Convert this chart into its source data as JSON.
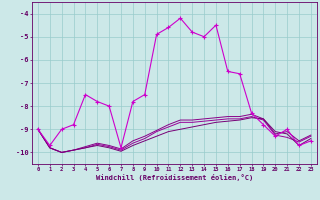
{
  "x": [
    0,
    1,
    2,
    3,
    4,
    5,
    6,
    7,
    8,
    9,
    10,
    11,
    12,
    13,
    14,
    15,
    16,
    17,
    18,
    19,
    20,
    21,
    22,
    23
  ],
  "line1": [
    -9.0,
    -9.7,
    -9.0,
    -8.8,
    -7.5,
    -7.8,
    -8.0,
    -9.8,
    -7.8,
    -7.5,
    -4.9,
    -4.6,
    -4.2,
    -4.8,
    -5.0,
    -4.5,
    -6.5,
    -6.6,
    -8.3,
    -8.8,
    -9.3,
    -9.0,
    -9.7,
    -9.5
  ],
  "line2": [
    -9.0,
    -9.8,
    -10.0,
    -9.9,
    -9.8,
    -9.7,
    -9.8,
    -9.95,
    -9.7,
    -9.5,
    -9.3,
    -9.1,
    -9.0,
    -8.9,
    -8.8,
    -8.7,
    -8.65,
    -8.6,
    -8.5,
    -8.55,
    -9.1,
    -9.2,
    -9.7,
    -9.4
  ],
  "line3": [
    -9.0,
    -9.8,
    -10.0,
    -9.9,
    -9.8,
    -9.65,
    -9.75,
    -9.9,
    -9.6,
    -9.4,
    -9.1,
    -8.9,
    -8.7,
    -8.7,
    -8.65,
    -8.6,
    -8.55,
    -8.55,
    -8.45,
    -8.6,
    -9.25,
    -9.35,
    -9.55,
    -9.3
  ],
  "line4": [
    -9.0,
    -9.8,
    -10.0,
    -9.9,
    -9.75,
    -9.6,
    -9.7,
    -9.85,
    -9.5,
    -9.3,
    -9.05,
    -8.8,
    -8.6,
    -8.6,
    -8.55,
    -8.5,
    -8.45,
    -8.45,
    -8.35,
    -8.55,
    -9.2,
    -9.1,
    -9.5,
    -9.25
  ],
  "line1_color": "#cc00cc",
  "line2_color": "#770077",
  "line3_color": "#990099",
  "line4_color": "#880088",
  "bg_color": "#cce8e8",
  "grid_color": "#99cccc",
  "axis_color": "#660066",
  "xlabel": "Windchill (Refroidissement éolien,°C)",
  "xlabel_color": "#660066",
  "ylim": [
    -10.5,
    -3.5
  ],
  "yticks": [
    -10,
    -9,
    -8,
    -7,
    -6,
    -5,
    -4
  ],
  "xlim": [
    -0.5,
    23.5
  ]
}
